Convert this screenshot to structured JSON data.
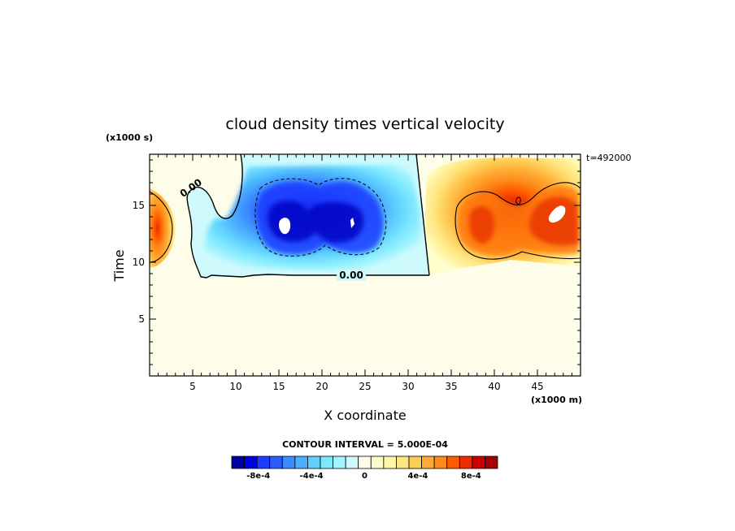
{
  "chart_data": {
    "type": "heatmap",
    "title": "cloud density times vertical velocity",
    "xlabel": "X coordinate",
    "ylabel": "Time",
    "x_units": "(x1000 m)",
    "y_units": "(x1000 s)",
    "annotation": "t=492000",
    "xlim": [
      0,
      50
    ],
    "ylim": [
      0,
      19.5
    ],
    "x_ticks": [
      5,
      10,
      15,
      20,
      25,
      30,
      35,
      40,
      45
    ],
    "y_ticks": [
      5,
      10,
      15
    ],
    "contour_labels": [
      "0.00",
      "0.00"
    ],
    "contour_interval": "CONTOUR INTERVAL = 5.000E-04",
    "colorbar": {
      "levels": [
        -0.001,
        -0.0009,
        -0.0008,
        -0.0007,
        -0.0006,
        -0.0005,
        -0.0004,
        -0.0003,
        -0.0002,
        -0.0001,
        0,
        0.0001,
        0.0002,
        0.0003,
        0.0004,
        0.0005,
        0.0006,
        0.0007,
        0.0008,
        0.0009,
        0.001
      ],
      "tick_labels": [
        {
          "label": "-8e-4",
          "value": -0.0008
        },
        {
          "label": "-4e-4",
          "value": -0.0004
        },
        {
          "label": "0",
          "value": 0
        },
        {
          "label": "4e-4",
          "value": 0.0004
        },
        {
          "label": "8e-4",
          "value": 0.0008
        }
      ],
      "colors": [
        "#0000a0",
        "#0000e0",
        "#1e3cff",
        "#2b5cff",
        "#3a8cff",
        "#4aaeff",
        "#5fd0ff",
        "#7de8ff",
        "#a3f4ff",
        "#cefafd",
        "#fdfdea",
        "#fffdcc",
        "#fff6a8",
        "#ffe680",
        "#ffcc55",
        "#ffaa33",
        "#ff8c1a",
        "#ff5c00",
        "#ee2c00",
        "#cc0000",
        "#a50000"
      ]
    },
    "features": [
      {
        "type": "negative-region",
        "x": [
          6.5,
          32.3
        ],
        "y": [
          9.0,
          19.5
        ],
        "min": -0.0011
      },
      {
        "type": "positive-region",
        "x": [
          0,
          3.5
        ],
        "y": [
          10.6,
          17.0
        ],
        "max": 0.00065
      },
      {
        "type": "positive-region",
        "x": [
          32.5,
          50
        ],
        "y": [
          10.3,
          19.5
        ],
        "max": 0.0011
      }
    ]
  }
}
